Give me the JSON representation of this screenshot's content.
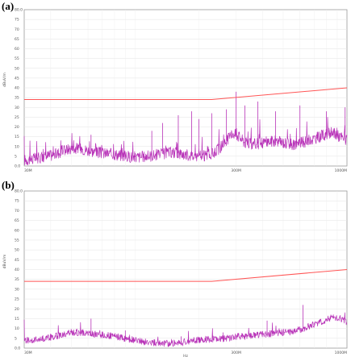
{
  "panels": [
    {
      "label": "(a)",
      "chart_data": {
        "type": "line",
        "ylabel": "dBuV/m",
        "ylim": [
          0,
          80
        ],
        "yticks": [
          "80.0",
          "75",
          "70",
          "65",
          "60",
          "55",
          "50",
          "45",
          "40",
          "35",
          "30",
          "25",
          "20",
          "15",
          "10",
          "5",
          "0.0"
        ],
        "xscale": "log",
        "xlim": [
          30,
          1000
        ],
        "xticks": [
          {
            "value": 30,
            "label": "30M"
          },
          {
            "value": 300,
            "label": "300M"
          },
          {
            "value": 1000,
            "label": "1000M"
          }
        ],
        "xlabel": "",
        "grid": true,
        "limit_line": {
          "color": "#ff5555",
          "x": [
            30,
            230,
            1000
          ],
          "y": [
            34,
            34,
            40
          ]
        },
        "series": [
          {
            "color": "#b833b8",
            "x": [
              30,
              32,
              35,
              38,
              42,
              46,
              50,
              55,
              60,
              66,
              72,
              80,
              90,
              100,
              115,
              130,
              150,
              170,
              190,
              210,
              230,
              250,
              270,
              290,
              310,
              330,
              360,
              400,
              450,
              500,
              560,
              620,
              700,
              780,
              860,
              930,
              1000
            ],
            "y": [
              3,
              3.5,
              4,
              5,
              6,
              8,
              9,
              9,
              8,
              7,
              6.5,
              6,
              5,
              4.5,
              5,
              6,
              7,
              6,
              5,
              5,
              6,
              9,
              13,
              17,
              15,
              12,
              11,
              12,
              13,
              12,
              11,
              12,
              14,
              16,
              17,
              15,
              13
            ],
            "spikes": [
              {
                "x": 62,
                "y": 16
              },
              {
                "x": 120,
                "y": 18
              },
              {
                "x": 135,
                "y": 22
              },
              {
                "x": 160,
                "y": 26
              },
              {
                "x": 185,
                "y": 28
              },
              {
                "x": 200,
                "y": 24
              },
              {
                "x": 230,
                "y": 27
              },
              {
                "x": 270,
                "y": 29
              },
              {
                "x": 300,
                "y": 38
              },
              {
                "x": 330,
                "y": 31
              },
              {
                "x": 380,
                "y": 33
              },
              {
                "x": 460,
                "y": 28
              },
              {
                "x": 600,
                "y": 31
              },
              {
                "x": 800,
                "y": 28
              },
              {
                "x": 980,
                "y": 30
              }
            ]
          }
        ]
      }
    },
    {
      "label": "(b)",
      "chart_data": {
        "type": "line",
        "ylabel": "dBuV/m",
        "ylim": [
          0,
          80
        ],
        "yticks": [
          "80.0",
          "75",
          "70",
          "65",
          "60",
          "55",
          "50",
          "45",
          "40",
          "35",
          "30",
          "25",
          "20",
          "15",
          "10",
          "5",
          "0.0"
        ],
        "xscale": "log",
        "xlim": [
          30,
          1000
        ],
        "xticks": [
          {
            "value": 30,
            "label": "30M"
          },
          {
            "value": 300,
            "label": "300M"
          },
          {
            "value": 1000,
            "label": "1000M"
          }
        ],
        "xlabel": "Hz",
        "grid": true,
        "limit_line": {
          "color": "#ff5555",
          "x": [
            30,
            230,
            1000
          ],
          "y": [
            34,
            34,
            40
          ]
        },
        "series": [
          {
            "color": "#b833b8",
            "x": [
              30,
              32,
              35,
              38,
              42,
              46,
              50,
              55,
              60,
              66,
              72,
              80,
              90,
              100,
              115,
              130,
              150,
              170,
              190,
              210,
              230,
              250,
              270,
              290,
              310,
              330,
              360,
              400,
              450,
              500,
              560,
              620,
              700,
              780,
              860,
              930,
              1000
            ],
            "y": [
              4,
              4,
              4.5,
              5,
              6,
              7,
              8,
              8,
              7.5,
              7,
              6.5,
              6,
              5,
              4,
              3,
              2.5,
              2.5,
              3,
              4,
              4.5,
              4.5,
              4.5,
              5,
              5.5,
              6,
              6,
              6.5,
              7,
              7.5,
              8,
              8.5,
              10,
              12,
              14,
              16,
              15,
              13
            ],
            "spikes": [
              {
                "x": 62,
                "y": 15
              },
              {
                "x": 90,
                "y": 9
              },
              {
                "x": 165,
                "y": 6
              },
              {
                "x": 260,
                "y": 8
              },
              {
                "x": 420,
                "y": 14
              },
              {
                "x": 620,
                "y": 22
              },
              {
                "x": 700,
                "y": 13
              }
            ]
          }
        ]
      }
    }
  ]
}
